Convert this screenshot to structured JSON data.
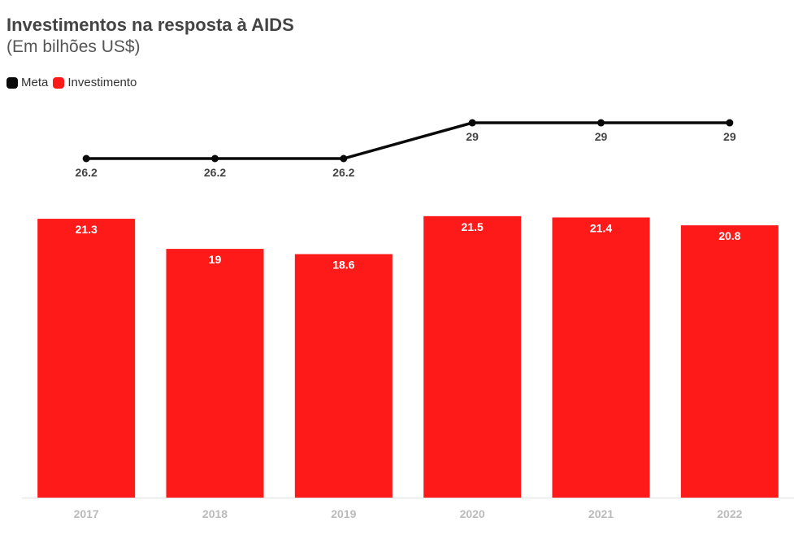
{
  "header": {
    "title": "Investimentos na resposta à AIDS",
    "subtitle": "(Em bilhões US$)"
  },
  "legend": {
    "items": [
      {
        "label": "Meta",
        "color": "#0a0a0a"
      },
      {
        "label": "Investimento",
        "color": "#ff1a1a"
      }
    ]
  },
  "chart_data": {
    "type": "bar",
    "title": "Investimentos na resposta à AIDS",
    "subtitle": "(Em bilhões US$)",
    "categories": [
      "2017",
      "2018",
      "2019",
      "2020",
      "2021",
      "2022"
    ],
    "series": [
      {
        "name": "Investimento",
        "type": "bar",
        "color": "#ff1a1a",
        "values": [
          21.3,
          19,
          18.6,
          21.5,
          21.4,
          20.8
        ]
      },
      {
        "name": "Meta",
        "type": "line",
        "color": "#0a0a0a",
        "values": [
          26.2,
          26.2,
          26.2,
          29,
          29,
          29
        ]
      }
    ],
    "legend": "top-left",
    "grid": false
  }
}
